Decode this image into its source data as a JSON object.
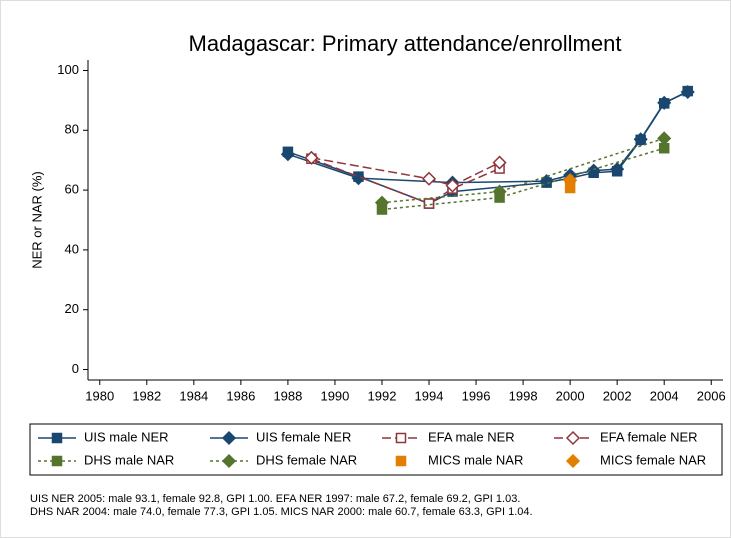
{
  "chart_data": {
    "type": "line",
    "title": "Madagascar: Primary attendance/enrollment",
    "ylabel": "NER or NAR (%)",
    "xlim": [
      1979.5,
      2006.5
    ],
    "xticks": [
      1980,
      1982,
      1984,
      1986,
      1988,
      1990,
      1992,
      1994,
      1996,
      1998,
      2000,
      2002,
      2004,
      2006
    ],
    "ylim": [
      -3.5,
      103.5
    ],
    "yticks": [
      0,
      20,
      40,
      60,
      80,
      100
    ],
    "grid": false,
    "legend": "bottom",
    "series": [
      {
        "name": "UIS male NER",
        "color": "#1a476f",
        "line_style": "solid",
        "marker": "square",
        "filled": true,
        "x": [
          1988,
          1991,
          1994,
          1995,
          1999,
          2000,
          2001,
          2002,
          2003,
          2004,
          2005
        ],
        "values": [
          72.8,
          64.5,
          55.5,
          59.5,
          62.5,
          64,
          65.8,
          66.3,
          76.8,
          89,
          93.1
        ]
      },
      {
        "name": "UIS female NER",
        "color": "#1a476f",
        "line_style": "solid",
        "marker": "diamond",
        "filled": true,
        "x": [
          1988,
          1991,
          1995,
          1999,
          2000,
          2001,
          2002,
          2003,
          2004,
          2005
        ],
        "values": [
          72,
          64,
          62.5,
          63,
          65,
          66.5,
          67,
          77,
          89.2,
          92.8
        ]
      },
      {
        "name": "EFA male NER",
        "color": "#90353b",
        "line_style": "dashed",
        "marker": "square",
        "filled": false,
        "x": [
          1989,
          1994,
          1995,
          1997
        ],
        "values": [
          70.5,
          55.5,
          60.5,
          67.2
        ]
      },
      {
        "name": "EFA female NER",
        "color": "#90353b",
        "line_style": "dashed",
        "marker": "diamond",
        "filled": false,
        "x": [
          1989,
          1994,
          1995,
          1997
        ],
        "values": [
          70.8,
          63.8,
          61.5,
          69.2
        ]
      },
      {
        "name": "DHS male NAR",
        "color": "#55752f",
        "line_style": "dotted",
        "marker": "square",
        "filled": true,
        "x": [
          1992,
          1997,
          2004
        ],
        "values": [
          53.5,
          57.5,
          74.0
        ]
      },
      {
        "name": "DHS female NAR",
        "color": "#55752f",
        "line_style": "dotted",
        "marker": "diamond",
        "filled": true,
        "x": [
          1992,
          1997,
          2004
        ],
        "values": [
          55.8,
          59.5,
          77.3
        ]
      },
      {
        "name": "MICS male NAR",
        "color": "#e37e00",
        "line_style": "none",
        "marker": "square",
        "filled": true,
        "x": [
          2000
        ],
        "values": [
          60.7
        ]
      },
      {
        "name": "MICS female NAR",
        "color": "#e37e00",
        "line_style": "none",
        "marker": "diamond",
        "filled": true,
        "x": [
          2000
        ],
        "values": [
          63.3
        ]
      }
    ],
    "notes": [
      "UIS NER 2005: male 93.1, female 92.8, GPI 1.00. EFA NER 1997: male 67.2, female 69.2, GPI 1.03.",
      "DHS NAR 2004: male 74.0, female 77.3, GPI 1.05. MICS NAR 2000: male 60.7, female 63.3, GPI 1.04."
    ]
  }
}
